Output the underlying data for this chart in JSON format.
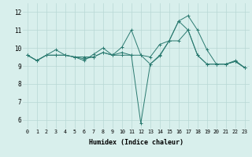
{
  "xlabel": "Humidex (Indice chaleur)",
  "series": [
    {
      "x": [
        0,
        1,
        2,
        3,
        4,
        5,
        6,
        7,
        8,
        9,
        10,
        11,
        12,
        13,
        14,
        15,
        16,
        17,
        18,
        19,
        20,
        21,
        22,
        23
      ],
      "y": [
        9.6,
        9.3,
        9.6,
        9.9,
        9.6,
        9.5,
        9.3,
        9.65,
        10.0,
        9.6,
        10.05,
        11.0,
        9.6,
        9.5,
        10.2,
        10.4,
        11.5,
        11.8,
        11.0,
        9.9,
        9.1,
        9.1,
        9.3,
        8.9
      ]
    },
    {
      "x": [
        0,
        1,
        2,
        3,
        4,
        5,
        6,
        7,
        8,
        9,
        10,
        11,
        12,
        13,
        14,
        15,
        16,
        17,
        18,
        19,
        20,
        21,
        22,
        23
      ],
      "y": [
        9.6,
        9.3,
        9.6,
        9.6,
        9.6,
        9.5,
        9.5,
        9.5,
        9.75,
        9.6,
        9.6,
        9.6,
        5.8,
        9.1,
        9.6,
        10.4,
        10.4,
        11.0,
        9.6,
        9.1,
        9.1,
        9.1,
        9.25,
        8.9
      ]
    },
    {
      "x": [
        0,
        1,
        2,
        3,
        4,
        5,
        6,
        7,
        8,
        9,
        10,
        11,
        12,
        13,
        14,
        15,
        16,
        17,
        18,
        19,
        20,
        21,
        22,
        23
      ],
      "y": [
        9.6,
        9.3,
        9.6,
        9.6,
        9.6,
        9.5,
        9.4,
        9.5,
        9.75,
        9.6,
        9.75,
        9.6,
        9.6,
        9.1,
        9.55,
        10.4,
        11.5,
        11.0,
        9.6,
        9.1,
        9.1,
        9.1,
        9.25,
        8.9
      ]
    }
  ],
  "line_color": "#2a7a70",
  "bg_color": "#d8efec",
  "grid_color": "#b8d8d4",
  "ylim": [
    5.5,
    12.5
  ],
  "yticks": [
    6,
    7,
    8,
    9,
    10,
    11,
    12
  ],
  "xticks": [
    0,
    1,
    2,
    3,
    4,
    5,
    6,
    7,
    8,
    9,
    10,
    11,
    12,
    13,
    14,
    15,
    16,
    17,
    18,
    19,
    20,
    21,
    22,
    23
  ]
}
